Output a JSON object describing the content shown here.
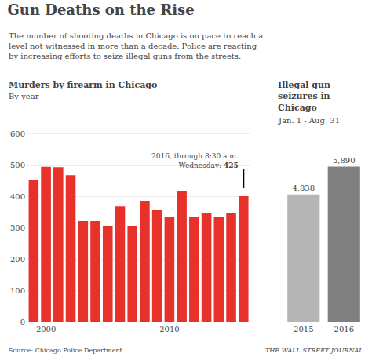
{
  "title": "Gun Deaths on the Rise",
  "subtitle": "The number of shooting deaths in Chicago is on pace to reach a\nlevel not witnessed in more than a decade. Police are reacting\nby increasing efforts to seize illegal guns from the streets.",
  "annotations": [
    "Source: Chicago Police Department",
    "THE WALL STREET JOURNAL"
  ],
  "chart_data": [
    {
      "type": "bar",
      "title": "Murders by firearm in Chicago",
      "subtitle": "By year",
      "categories": [
        null,
        "2000",
        null,
        null,
        null,
        null,
        null,
        null,
        null,
        null,
        null,
        "2010",
        null,
        null,
        null,
        null,
        null,
        null
      ],
      "values": [
        450,
        493,
        492,
        467,
        320,
        320,
        305,
        367,
        305,
        385,
        355,
        335,
        415,
        335,
        345,
        335,
        345,
        400
      ],
      "color": "#e8312a",
      "ylim": [
        0,
        620
      ],
      "yticks": [
        0,
        100,
        200,
        300,
        400,
        500,
        600
      ],
      "grid": true,
      "annotations": [
        {
          "x": 17,
          "value": 425,
          "text": "2016, through 8:30 a.m.",
          "label": "Wednesday:"
        }
      ]
    },
    {
      "type": "bar",
      "title": "Illegal gun\nseizures in\nChicago",
      "subtitle": "Jan. 1 - Aug. 31",
      "categories": [
        "2015",
        "2016"
      ],
      "values": [
        4838,
        5890
      ],
      "value_labels": [
        "4,838",
        "5,890"
      ],
      "colors": [
        "#b5b5b5",
        "#808080"
      ],
      "ylim": [
        0,
        7400
      ],
      "grid": false,
      "data_labels": true,
      "tick_labels": "x"
    }
  ]
}
